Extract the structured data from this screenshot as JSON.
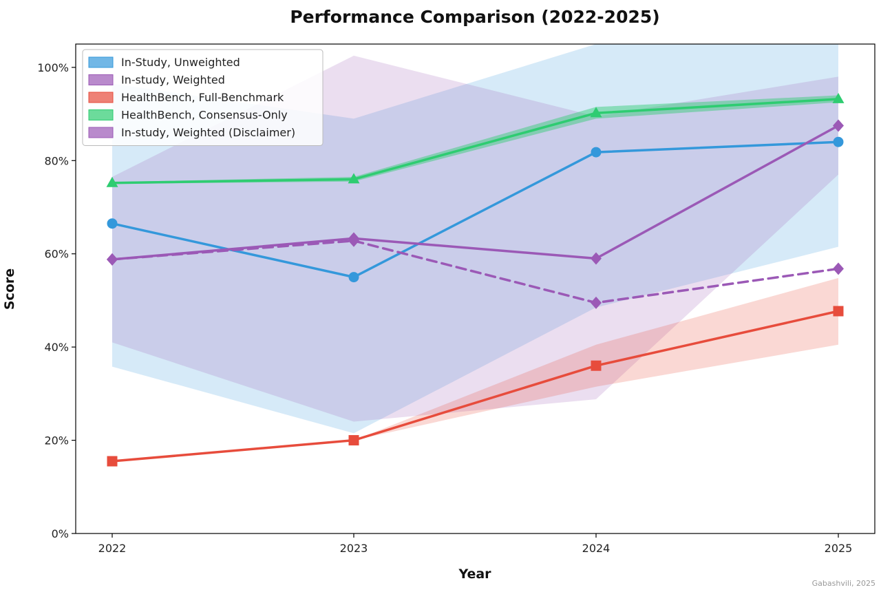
{
  "chart_data": {
    "type": "line",
    "title": "Performance Comparison (2022-2025)",
    "xlabel": "Year",
    "ylabel": "Score",
    "x": [
      2022,
      2023,
      2024,
      2025
    ],
    "x_tick_labels": [
      "2022",
      "2023",
      "2024",
      "2025"
    ],
    "y_ticks": [
      0,
      20,
      40,
      60,
      80,
      100
    ],
    "y_tick_labels": [
      "0%",
      "20%",
      "40%",
      "60%",
      "80%",
      "100%"
    ],
    "ylim": [
      0,
      105
    ],
    "grid": false,
    "legend_position": "top-left",
    "credit": "Gabashvili, 2025",
    "series": [
      {
        "name": "In-Study, Unweighted",
        "color": "#3498db",
        "marker": "circle",
        "dash": "solid",
        "values": [
          66.5,
          55.0,
          81.8,
          84.0
        ],
        "band_lower": [
          35.8,
          21.5,
          48.5,
          61.5
        ],
        "band_upper": [
          96.5,
          89.0,
          105.0,
          105.0
        ],
        "band_opacity": 0.2
      },
      {
        "name": "In-study, Weighted",
        "color": "#9b59b6",
        "marker": "diamond",
        "dash": "solid",
        "values": [
          58.8,
          63.3,
          59.0,
          87.5
        ],
        "band_lower": [
          41.0,
          24.0,
          28.8,
          77.0
        ],
        "band_upper": [
          76.5,
          102.5,
          89.5,
          98.0
        ],
        "band_opacity": 0.2
      },
      {
        "name": "HealthBench, Full-Benchmark",
        "color": "#e74c3c",
        "marker": "square",
        "dash": "solid",
        "values": [
          15.5,
          20.0,
          36.0,
          47.7
        ],
        "band_lower": [
          15.5,
          20.0,
          31.5,
          40.5
        ],
        "band_upper": [
          15.5,
          20.0,
          40.5,
          54.8
        ],
        "band_opacity": 0.22
      },
      {
        "name": "HealthBench, Consensus-Only",
        "color": "#2ecc71",
        "marker": "triangle",
        "dash": "solid",
        "values": [
          75.2,
          76.0,
          90.2,
          93.2
        ],
        "band_lower": [
          75.0,
          75.5,
          89.0,
          92.5
        ],
        "band_upper": [
          75.4,
          76.5,
          91.5,
          94.0
        ],
        "band_opacity": 0.45
      },
      {
        "name": "In-study, Weighted (Disclaimer)",
        "color": "#9b59b6",
        "marker": "diamond",
        "dash": "dashed",
        "values": [
          58.8,
          62.8,
          49.5,
          56.8
        ],
        "band_lower": null,
        "band_upper": null,
        "band_opacity": 0.2
      }
    ]
  }
}
